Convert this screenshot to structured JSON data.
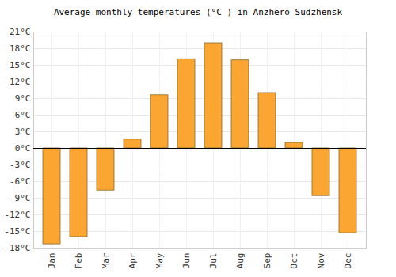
{
  "chart_data": {
    "type": "bar",
    "title": "Average monthly temperatures (°C ) in Anzhero-Sudzhensk",
    "categories": [
      "Jan",
      "Feb",
      "Mar",
      "Apr",
      "May",
      "Jun",
      "Jul",
      "Aug",
      "Sep",
      "Oct",
      "Nov",
      "Dec"
    ],
    "values": [
      -17.3,
      -16.0,
      -7.6,
      1.6,
      9.6,
      16.1,
      19.0,
      15.9,
      10.0,
      1.0,
      -8.6,
      -15.3
    ],
    "color": "#fba632",
    "ylim": [
      -18,
      21
    ],
    "yticks": [
      {
        "value": -18,
        "label": "-18°C"
      },
      {
        "value": -15,
        "label": "-15°C"
      },
      {
        "value": -12,
        "label": "-12°C"
      },
      {
        "value": -9,
        "label": "-9°C"
      },
      {
        "value": -6,
        "label": "-6°C"
      },
      {
        "value": -3,
        "label": "-3°C"
      },
      {
        "value": 0,
        "label": "0°C"
      },
      {
        "value": 3,
        "label": "3°C"
      },
      {
        "value": 6,
        "label": "6°C"
      },
      {
        "value": 9,
        "label": "9°C"
      },
      {
        "value": 12,
        "label": "12°C"
      },
      {
        "value": 15,
        "label": "15°C"
      },
      {
        "value": 18,
        "label": "18°C"
      },
      {
        "value": 21,
        "label": "21°C"
      }
    ],
    "grid": true
  }
}
